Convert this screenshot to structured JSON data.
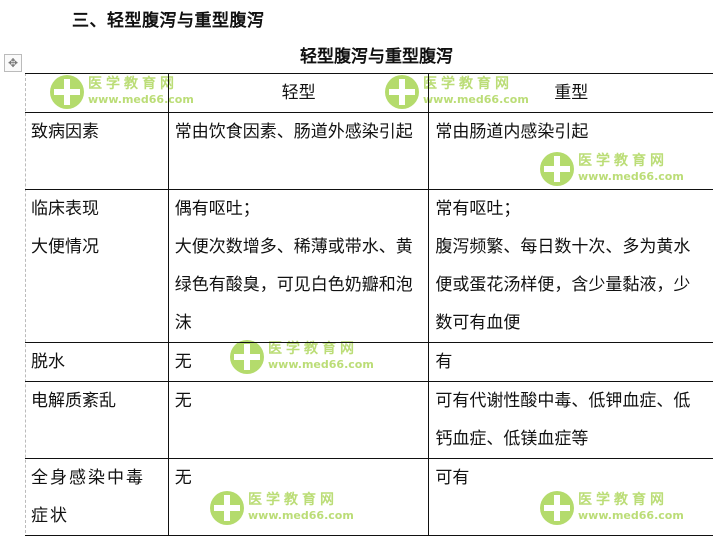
{
  "section_heading": "三、轻型腹泻与重型腹泻",
  "table_caption": "轻型腹泻与重型腹泻",
  "watermark": {
    "name": "医学教育网",
    "url": "www.med66.com",
    "color": "#9ccf3c"
  },
  "table": {
    "headers": [
      "",
      "轻型",
      "重型"
    ],
    "rows": [
      {
        "label": "致病因素",
        "mild": "常由饮食因素、肠道外感染引起",
        "severe": "常由肠道内感染引起"
      },
      {
        "label": "临床表现\n大便情况",
        "mild": "偶有呕吐；\n大便次数增多、稀薄或带水、黄绿色有酸臭，可见白色奶瓣和泡沫",
        "severe": "常有呕吐；\n腹泻频繁、每日数十次、多为黄水便或蛋花汤样便，含少量黏液，少数可有血便"
      },
      {
        "label": "脱水",
        "mild": "无",
        "severe": "有"
      },
      {
        "label": "电解质紊乱",
        "mild": "无",
        "severe": "可有代谢性酸中毒、低钾血症、低钙血症、低镁血症等"
      },
      {
        "label": "全身感染中毒症状",
        "mild": "无",
        "severe": "可有"
      }
    ]
  }
}
